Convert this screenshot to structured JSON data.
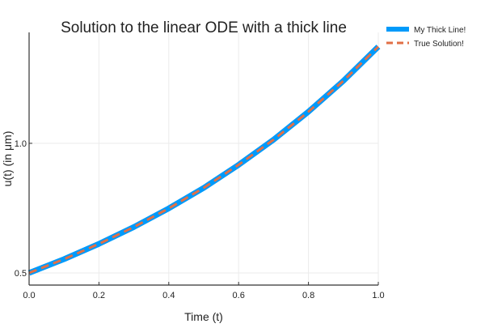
{
  "chart_data": {
    "type": "line",
    "title": "Solution to the linear ODE with a thick line",
    "xlabel": "Time (t)",
    "ylabel": "u(t) (in μm)",
    "xlim": [
      0,
      1
    ],
    "ylim": [
      0.453,
      1.428
    ],
    "xticks": [
      0.0,
      0.2,
      0.4,
      0.6,
      0.8,
      1.0
    ],
    "xtick_labels": [
      "0.0",
      "0.2",
      "0.4",
      "0.6",
      "0.8",
      "1.0"
    ],
    "yticks": [
      0.5,
      1.0
    ],
    "ytick_labels": [
      "0.5",
      "1.0"
    ],
    "grid": true,
    "legend_placement": "top-right outside",
    "x": [
      0,
      0.1,
      0.2,
      0.3,
      0.4,
      0.5,
      0.6,
      0.7,
      0.8,
      0.9,
      1.0
    ],
    "series": [
      {
        "name": "My Thick Line!",
        "color": "#009AFA",
        "style": "solid-thick",
        "values": [
          0.5,
          0.553,
          0.612,
          0.677,
          0.749,
          0.828,
          0.917,
          1.014,
          1.122,
          1.241,
          1.373
        ]
      },
      {
        "name": "True Solution!",
        "color": "#E26F46",
        "style": "dashed",
        "values": [
          0.5,
          0.553,
          0.612,
          0.677,
          0.749,
          0.828,
          0.917,
          1.014,
          1.122,
          1.241,
          1.373
        ]
      }
    ]
  }
}
